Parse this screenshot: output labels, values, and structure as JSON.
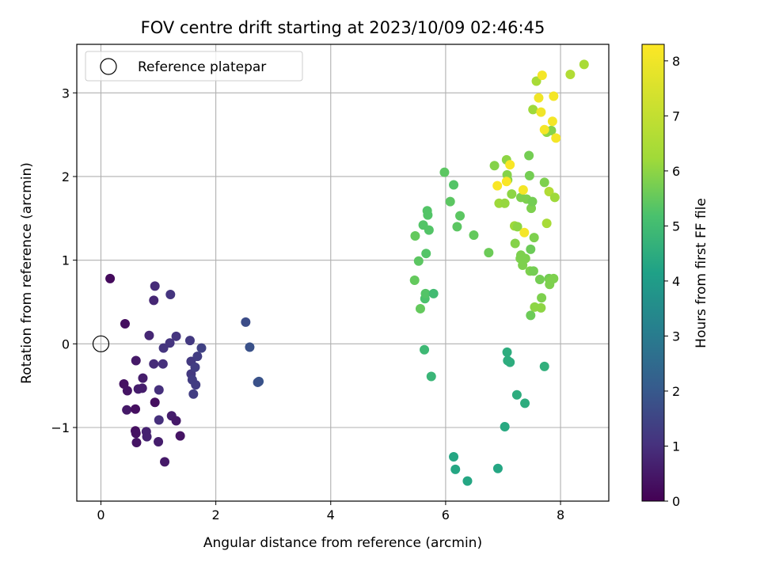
{
  "chart_data": {
    "type": "scatter",
    "title": "FOV centre drift starting at 2023/10/09 02:46:45",
    "xlabel": "Angular distance from reference (arcmin)",
    "ylabel": "Rotation from reference (arcmin)",
    "xlim": [
      -0.42,
      8.84
    ],
    "ylim": [
      -1.88,
      3.58
    ],
    "xticks": [
      0,
      2,
      4,
      6,
      8
    ],
    "yticks": [
      -1,
      0,
      1,
      2,
      3
    ],
    "grid": true,
    "legend": {
      "position": "top-left",
      "entries": [
        {
          "label": "Reference platepar",
          "marker": "open-circle"
        }
      ]
    },
    "reference_point": {
      "x": 0,
      "y": 0
    },
    "colorbar": {
      "label": "Hours from first FF file",
      "range": [
        0,
        8.3
      ],
      "ticks": [
        0,
        1,
        2,
        3,
        4,
        5,
        6,
        7,
        8
      ],
      "colormap": "viridis"
    },
    "series": [
      {
        "points": [
          {
            "x": 0.16,
            "y": 0.78,
            "c": 0.2
          },
          {
            "x": 0.42,
            "y": 0.24,
            "c": 0.3
          },
          {
            "x": 0.4,
            "y": -0.48,
            "c": 0.35
          },
          {
            "x": 0.46,
            "y": -0.56,
            "c": 0.4
          },
          {
            "x": 0.45,
            "y": -0.79,
            "c": 0.5
          },
          {
            "x": 0.6,
            "y": -0.78,
            "c": 0.3
          },
          {
            "x": 0.6,
            "y": -1.04,
            "c": 0.3
          },
          {
            "x": 0.61,
            "y": -1.07,
            "c": 0.35
          },
          {
            "x": 0.62,
            "y": -1.18,
            "c": 0.4
          },
          {
            "x": 0.61,
            "y": -0.2,
            "c": 0.5
          },
          {
            "x": 0.65,
            "y": -0.54,
            "c": 0.6
          },
          {
            "x": 0.72,
            "y": -0.53,
            "c": 0.6
          },
          {
            "x": 0.73,
            "y": -0.41,
            "c": 0.6
          },
          {
            "x": 0.79,
            "y": -1.05,
            "c": 0.7
          },
          {
            "x": 0.8,
            "y": -1.11,
            "c": 0.7
          },
          {
            "x": 0.84,
            "y": 0.1,
            "c": 0.8
          },
          {
            "x": 0.92,
            "y": 0.52,
            "c": 0.8
          },
          {
            "x": 0.94,
            "y": 0.69,
            "c": 0.9
          },
          {
            "x": 0.92,
            "y": -0.24,
            "c": 0.9
          },
          {
            "x": 0.94,
            "y": -0.7,
            "c": 0.3
          },
          {
            "x": 1.0,
            "y": -1.17,
            "c": 0.6
          },
          {
            "x": 1.01,
            "y": -0.55,
            "c": 1.0
          },
          {
            "x": 1.01,
            "y": -0.91,
            "c": 1.0
          },
          {
            "x": 1.09,
            "y": -0.05,
            "c": 1.1
          },
          {
            "x": 1.08,
            "y": -0.24,
            "c": 1.0
          },
          {
            "x": 1.11,
            "y": -1.41,
            "c": 0.5
          },
          {
            "x": 1.21,
            "y": 0.59,
            "c": 1.1
          },
          {
            "x": 1.2,
            "y": 0.01,
            "c": 1.1
          },
          {
            "x": 1.23,
            "y": -0.86,
            "c": 0.6
          },
          {
            "x": 1.31,
            "y": 0.09,
            "c": 1.1
          },
          {
            "x": 1.31,
            "y": -0.92,
            "c": 0.5
          },
          {
            "x": 1.38,
            "y": -1.1,
            "c": 0.4
          },
          {
            "x": 1.55,
            "y": 0.04,
            "c": 1.2
          },
          {
            "x": 1.57,
            "y": -0.21,
            "c": 1.2
          },
          {
            "x": 1.57,
            "y": -0.36,
            "c": 1.2
          },
          {
            "x": 1.59,
            "y": -0.43,
            "c": 1.3
          },
          {
            "x": 1.61,
            "y": -0.6,
            "c": 1.3
          },
          {
            "x": 1.64,
            "y": -0.28,
            "c": 1.3
          },
          {
            "x": 1.65,
            "y": -0.49,
            "c": 1.3
          },
          {
            "x": 1.68,
            "y": -0.15,
            "c": 1.3
          },
          {
            "x": 1.75,
            "y": -0.05,
            "c": 1.4
          },
          {
            "x": 2.52,
            "y": 0.26,
            "c": 1.7
          },
          {
            "x": 2.59,
            "y": -0.04,
            "c": 1.8
          },
          {
            "x": 2.75,
            "y": -0.45,
            "c": 1.9
          },
          {
            "x": 2.73,
            "y": -0.46,
            "c": 1.8
          },
          {
            "x": 5.47,
            "y": 1.29,
            "c": 5.5
          },
          {
            "x": 5.46,
            "y": 0.76,
            "c": 5.5
          },
          {
            "x": 5.53,
            "y": 0.99,
            "c": 5.4
          },
          {
            "x": 5.56,
            "y": 0.42,
            "c": 5.5
          },
          {
            "x": 5.61,
            "y": 1.42,
            "c": 5.3
          },
          {
            "x": 5.63,
            "y": -0.07,
            "c": 4.9
          },
          {
            "x": 5.64,
            "y": 0.54,
            "c": 5.2
          },
          {
            "x": 5.65,
            "y": 0.6,
            "c": 5.3
          },
          {
            "x": 5.66,
            "y": 1.08,
            "c": 5.3
          },
          {
            "x": 5.68,
            "y": 1.59,
            "c": 5.3
          },
          {
            "x": 5.69,
            "y": 1.54,
            "c": 5.3
          },
          {
            "x": 5.71,
            "y": 1.36,
            "c": 5.3
          },
          {
            "x": 5.75,
            "y": -0.39,
            "c": 4.8
          },
          {
            "x": 5.79,
            "y": 0.6,
            "c": 5.0
          },
          {
            "x": 5.98,
            "y": 2.05,
            "c": 5.4
          },
          {
            "x": 6.08,
            "y": 1.7,
            "c": 5.4
          },
          {
            "x": 6.14,
            "y": 1.9,
            "c": 5.3
          },
          {
            "x": 6.14,
            "y": -1.35,
            "c": 4.3
          },
          {
            "x": 6.17,
            "y": -1.5,
            "c": 4.3
          },
          {
            "x": 6.2,
            "y": 1.4,
            "c": 5.4
          },
          {
            "x": 6.25,
            "y": 1.53,
            "c": 5.4
          },
          {
            "x": 6.38,
            "y": -1.64,
            "c": 4.3
          },
          {
            "x": 6.49,
            "y": 1.3,
            "c": 5.5
          },
          {
            "x": 6.75,
            "y": 1.09,
            "c": 5.6
          },
          {
            "x": 6.85,
            "y": 2.13,
            "c": 5.9
          },
          {
            "x": 6.91,
            "y": -1.49,
            "c": 4.3
          },
          {
            "x": 6.93,
            "y": 1.68,
            "c": 6.2
          },
          {
            "x": 7.03,
            "y": 1.68,
            "c": 6.1
          },
          {
            "x": 7.03,
            "y": -0.99,
            "c": 4.4
          },
          {
            "x": 7.06,
            "y": 2.2,
            "c": 6.0
          },
          {
            "x": 7.07,
            "y": 2.02,
            "c": 5.9
          },
          {
            "x": 7.08,
            "y": 1.96,
            "c": 5.9
          },
          {
            "x": 7.07,
            "y": -0.1,
            "c": 4.5
          },
          {
            "x": 7.08,
            "y": -0.2,
            "c": 4.5
          },
          {
            "x": 7.12,
            "y": -0.22,
            "c": 4.5
          },
          {
            "x": 7.15,
            "y": 1.79,
            "c": 6.0
          },
          {
            "x": 7.2,
            "y": 1.41,
            "c": 6.2
          },
          {
            "x": 7.21,
            "y": 1.2,
            "c": 5.9
          },
          {
            "x": 7.24,
            "y": -0.61,
            "c": 4.5
          },
          {
            "x": 7.25,
            "y": 1.4,
            "c": 6.0
          },
          {
            "x": 7.3,
            "y": 1.02,
            "c": 5.8
          },
          {
            "x": 7.31,
            "y": 1.06,
            "c": 5.8
          },
          {
            "x": 7.31,
            "y": 1.75,
            "c": 5.8
          },
          {
            "x": 7.34,
            "y": 0.94,
            "c": 5.8
          },
          {
            "x": 7.38,
            "y": -0.71,
            "c": 4.5
          },
          {
            "x": 7.39,
            "y": 1.02,
            "c": 5.8
          },
          {
            "x": 7.41,
            "y": 1.73,
            "c": 5.8
          },
          {
            "x": 7.45,
            "y": 2.25,
            "c": 5.7
          },
          {
            "x": 7.46,
            "y": 2.01,
            "c": 5.7
          },
          {
            "x": 7.47,
            "y": 0.87,
            "c": 5.8
          },
          {
            "x": 7.48,
            "y": 0.34,
            "c": 5.6
          },
          {
            "x": 7.48,
            "y": 1.13,
            "c": 5.6
          },
          {
            "x": 7.49,
            "y": 1.62,
            "c": 5.8
          },
          {
            "x": 7.51,
            "y": 1.7,
            "c": 5.7
          },
          {
            "x": 7.52,
            "y": 2.8,
            "c": 6.2
          },
          {
            "x": 7.53,
            "y": 0.87,
            "c": 5.7
          },
          {
            "x": 7.54,
            "y": 1.27,
            "c": 5.8
          },
          {
            "x": 7.55,
            "y": 0.44,
            "c": 6.0
          },
          {
            "x": 7.58,
            "y": 3.14,
            "c": 6.4
          },
          {
            "x": 7.64,
            "y": 0.77,
            "c": 5.7
          },
          {
            "x": 7.66,
            "y": 0.43,
            "c": 6.0
          },
          {
            "x": 7.67,
            "y": 0.55,
            "c": 5.8
          },
          {
            "x": 7.72,
            "y": -0.27,
            "c": 4.6
          },
          {
            "x": 7.72,
            "y": 1.93,
            "c": 5.8
          },
          {
            "x": 7.76,
            "y": 1.44,
            "c": 6.4
          },
          {
            "x": 7.76,
            "y": 2.53,
            "c": 6.0
          },
          {
            "x": 7.8,
            "y": 0.78,
            "c": 5.7
          },
          {
            "x": 7.8,
            "y": 1.82,
            "c": 6.6
          },
          {
            "x": 7.81,
            "y": 0.71,
            "c": 5.8
          },
          {
            "x": 7.82,
            "y": 0.75,
            "c": 5.8
          },
          {
            "x": 7.84,
            "y": 2.55,
            "c": 5.9
          },
          {
            "x": 7.88,
            "y": 0.78,
            "c": 5.8
          },
          {
            "x": 7.9,
            "y": 1.75,
            "c": 6.2
          },
          {
            "x": 8.17,
            "y": 3.22,
            "c": 6.6
          },
          {
            "x": 8.41,
            "y": 3.34,
            "c": 6.4
          },
          {
            "x": 6.9,
            "y": 1.89,
            "c": 8.2
          },
          {
            "x": 7.06,
            "y": 1.94,
            "c": 8.2
          },
          {
            "x": 7.12,
            "y": 2.14,
            "c": 8.2
          },
          {
            "x": 7.35,
            "y": 1.84,
            "c": 8.1
          },
          {
            "x": 7.37,
            "y": 1.33,
            "c": 8.1
          },
          {
            "x": 7.62,
            "y": 2.94,
            "c": 8.0
          },
          {
            "x": 7.66,
            "y": 2.77,
            "c": 8.0
          },
          {
            "x": 7.68,
            "y": 3.21,
            "c": 8.1
          },
          {
            "x": 7.72,
            "y": 2.56,
            "c": 8.1
          },
          {
            "x": 7.86,
            "y": 2.66,
            "c": 8.1
          },
          {
            "x": 7.88,
            "y": 2.96,
            "c": 8.1
          },
          {
            "x": 7.92,
            "y": 2.46,
            "c": 8.1
          }
        ]
      }
    ]
  }
}
